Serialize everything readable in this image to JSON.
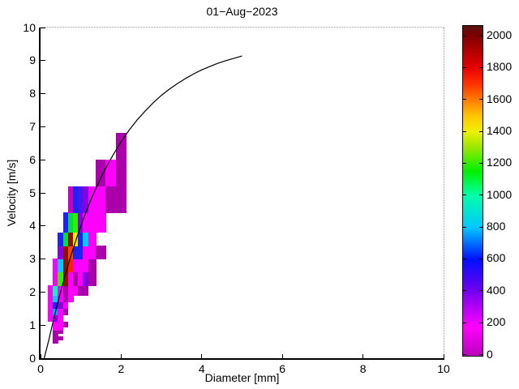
{
  "figure": {
    "title": "01−Aug−2023",
    "xlabel": "Diameter [mm]",
    "ylabel": "Velocity [m/s]"
  },
  "axes": {
    "xlim": [
      0,
      10
    ],
    "ylim": [
      0,
      10
    ],
    "x_tick_values": [
      0,
      2,
      4,
      6,
      8,
      10
    ],
    "x_tick_labels": [
      "0",
      "2",
      "4",
      "6",
      "8",
      "10"
    ],
    "y_tick_values": [
      0,
      1,
      2,
      3,
      4,
      5,
      6,
      7,
      8,
      9,
      10
    ],
    "y_tick_labels": [
      "0",
      "1",
      "2",
      "3",
      "4",
      "5",
      "6",
      "7",
      "8",
      "9",
      "10"
    ],
    "box_top_right_style": "dotted-gray",
    "grid": false
  },
  "colorbar": {
    "orientation": "vertical",
    "position": "right",
    "vmin": 0,
    "vmax": 2059,
    "tick_values": [
      0,
      200,
      400,
      600,
      800,
      1000,
      1200,
      1400,
      1600,
      1800,
      2000
    ],
    "tick_labels": [
      "0",
      "200",
      "400",
      "600",
      "800",
      "1000",
      "1200",
      "1400",
      "1600",
      "1800",
      "2000"
    ],
    "gradient_stops": [
      [
        0,
        "#BB00BB"
      ],
      [
        180,
        "#FF00FF"
      ],
      [
        420,
        "#6A00F0"
      ],
      [
        600,
        "#0010FF"
      ],
      [
        800,
        "#00C8FF"
      ],
      [
        1000,
        "#00FFAA"
      ],
      [
        1150,
        "#00F000"
      ],
      [
        1300,
        "#9AE800"
      ],
      [
        1400,
        "#F0F000"
      ],
      [
        1500,
        "#FFC400"
      ],
      [
        1600,
        "#FF7A00"
      ],
      [
        1700,
        "#FF3000"
      ],
      [
        1800,
        "#E60000"
      ],
      [
        1900,
        "#B20000"
      ],
      [
        2000,
        "#7E0000"
      ],
      [
        2059,
        "#581410"
      ]
    ]
  },
  "chart_data": {
    "type": "heatmap",
    "title": "01−Aug−2023",
    "xlabel": "Diameter [mm]",
    "ylabel": "Velocity [m/s]",
    "xlim": [
      0,
      10
    ],
    "ylim": [
      0,
      10
    ],
    "colorbar_range": [
      0,
      2059
    ],
    "legend_position": "right-colorbar",
    "description": "Disdrometer drop size vs fall velocity spectrum with drop-count colored bins and empirical terminal-velocity curve",
    "cells": [
      {
        "d": [
          0.312,
          0.437
        ],
        "v": [
          0.45,
          0.55
        ],
        "n": 25,
        "c": "#AA00AA"
      },
      {
        "d": [
          0.312,
          0.437
        ],
        "v": [
          0.55,
          0.65
        ],
        "n": 25,
        "c": "#AA00AA"
      },
      {
        "d": [
          0.437,
          0.562
        ],
        "v": [
          0.55,
          0.65
        ],
        "n": 25,
        "c": "#AA00AA"
      },
      {
        "d": [
          0.312,
          0.437
        ],
        "v": [
          0.65,
          0.75
        ],
        "n": 25,
        "c": "#AA00AA"
      },
      {
        "d": [
          0.312,
          0.437
        ],
        "v": [
          0.75,
          0.85
        ],
        "n": 25,
        "c": "#AA00AA"
      },
      {
        "d": [
          0.437,
          0.562
        ],
        "v": [
          0.75,
          0.85
        ],
        "n": 25,
        "c": "#AA00AA"
      },
      {
        "d": [
          0.312,
          0.437
        ],
        "v": [
          0.85,
          0.95
        ],
        "n": 150,
        "c": "#FF00FF"
      },
      {
        "d": [
          0.437,
          0.562
        ],
        "v": [
          0.85,
          0.95
        ],
        "n": 150,
        "c": "#FF00FF"
      },
      {
        "d": [
          0.312,
          0.437
        ],
        "v": [
          0.95,
          1.1
        ],
        "n": 150,
        "c": "#FF00FF"
      },
      {
        "d": [
          0.437,
          0.562
        ],
        "v": [
          0.95,
          1.1
        ],
        "n": 150,
        "c": "#FF00FF"
      },
      {
        "d": [
          0.562,
          0.687
        ],
        "v": [
          0.95,
          1.1
        ],
        "n": 25,
        "c": "#AA00AA"
      },
      {
        "d": [
          0.187,
          0.312
        ],
        "v": [
          1.1,
          1.3
        ],
        "n": 150,
        "c": "#FF00FF"
      },
      {
        "d": [
          0.312,
          0.437
        ],
        "v": [
          1.1,
          1.3
        ],
        "n": 330,
        "c": "#8800DD"
      },
      {
        "d": [
          0.437,
          0.562
        ],
        "v": [
          1.1,
          1.3
        ],
        "n": 150,
        "c": "#FF00FF"
      },
      {
        "d": [
          0.187,
          0.312
        ],
        "v": [
          1.3,
          1.5
        ],
        "n": 150,
        "c": "#FF00FF"
      },
      {
        "d": [
          0.312,
          0.437
        ],
        "v": [
          1.3,
          1.5
        ],
        "n": 740,
        "c": "#00AAFF"
      },
      {
        "d": [
          0.437,
          0.562
        ],
        "v": [
          1.3,
          1.5
        ],
        "n": 150,
        "c": "#FF00FF"
      },
      {
        "d": [
          0.562,
          0.687
        ],
        "v": [
          1.3,
          1.5
        ],
        "n": 25,
        "c": "#AA00AA"
      },
      {
        "d": [
          0.187,
          0.312
        ],
        "v": [
          1.5,
          1.7
        ],
        "n": 150,
        "c": "#FF00FF"
      },
      {
        "d": [
          0.312,
          0.437
        ],
        "v": [
          1.5,
          1.7
        ],
        "n": 560,
        "c": "#2222F0"
      },
      {
        "d": [
          0.437,
          0.562
        ],
        "v": [
          1.5,
          1.7
        ],
        "n": 330,
        "c": "#8800DD"
      },
      {
        "d": [
          0.562,
          0.687
        ],
        "v": [
          1.5,
          1.7
        ],
        "n": 150,
        "c": "#FF00FF"
      },
      {
        "d": [
          0.187,
          0.312
        ],
        "v": [
          1.7,
          1.9
        ],
        "n": 150,
        "c": "#FF00FF"
      },
      {
        "d": [
          0.312,
          0.437
        ],
        "v": [
          1.7,
          1.9
        ],
        "n": 800,
        "c": "#00CCFF"
      },
      {
        "d": [
          0.437,
          0.562
        ],
        "v": [
          1.7,
          1.9
        ],
        "n": 150,
        "c": "#FF00FF"
      },
      {
        "d": [
          0.562,
          0.687
        ],
        "v": [
          1.7,
          1.9
        ],
        "n": 25,
        "c": "#AA00AA"
      },
      {
        "d": [
          0.687,
          0.812
        ],
        "v": [
          1.7,
          1.9
        ],
        "n": 150,
        "c": "#FF00FF"
      },
      {
        "d": [
          0.187,
          0.312
        ],
        "v": [
          1.9,
          2.2
        ],
        "n": 150,
        "c": "#FF00FF"
      },
      {
        "d": [
          0.312,
          0.437
        ],
        "v": [
          1.9,
          2.2
        ],
        "n": 950,
        "c": "#00FFBB"
      },
      {
        "d": [
          0.437,
          0.562
        ],
        "v": [
          1.9,
          2.2
        ],
        "n": 150,
        "c": "#FF00FF"
      },
      {
        "d": [
          0.562,
          0.687
        ],
        "v": [
          1.9,
          2.2
        ],
        "n": 25,
        "c": "#AA00AA"
      },
      {
        "d": [
          0.687,
          0.812
        ],
        "v": [
          1.9,
          2.2
        ],
        "n": 150,
        "c": "#FF00FF"
      },
      {
        "d": [
          0.812,
          0.937
        ],
        "v": [
          1.9,
          2.2
        ],
        "n": 150,
        "c": "#FF00FF"
      },
      {
        "d": [
          0.937,
          1.062
        ],
        "v": [
          1.9,
          2.2
        ],
        "n": 25,
        "c": "#AA00AA"
      },
      {
        "d": [
          1.062,
          1.187
        ],
        "v": [
          1.9,
          2.2
        ],
        "n": 25,
        "c": "#AA00AA"
      },
      {
        "d": [
          0.312,
          0.437
        ],
        "v": [
          2.2,
          2.6
        ],
        "n": 150,
        "c": "#FF00FF"
      },
      {
        "d": [
          0.437,
          0.562
        ],
        "v": [
          2.2,
          2.6
        ],
        "n": 1220,
        "c": "#33EE00"
      },
      {
        "d": [
          0.562,
          0.687
        ],
        "v": [
          2.2,
          2.6
        ],
        "n": 1980,
        "c": "#8E1200"
      },
      {
        "d": [
          0.687,
          0.812
        ],
        "v": [
          2.2,
          2.6
        ],
        "n": 150,
        "c": "#FF00FF"
      },
      {
        "d": [
          0.812,
          0.937
        ],
        "v": [
          2.2,
          2.6
        ],
        "n": 25,
        "c": "#AA00AA"
      },
      {
        "d": [
          0.937,
          1.062
        ],
        "v": [
          2.2,
          2.6
        ],
        "n": 150,
        "c": "#FF00FF"
      },
      {
        "d": [
          1.062,
          1.187
        ],
        "v": [
          2.2,
          2.6
        ],
        "n": 330,
        "c": "#8800DD"
      },
      {
        "d": [
          1.187,
          1.375
        ],
        "v": [
          2.2,
          2.6
        ],
        "n": 25,
        "c": "#AA00AA"
      },
      {
        "d": [
          0.312,
          0.437
        ],
        "v": [
          2.6,
          3.0
        ],
        "n": 150,
        "c": "#FF00FF"
      },
      {
        "d": [
          0.437,
          0.562
        ],
        "v": [
          2.6,
          3.0
        ],
        "n": 800,
        "c": "#00CCFF"
      },
      {
        "d": [
          0.562,
          0.687
        ],
        "v": [
          2.6,
          3.0
        ],
        "n": 1980,
        "c": "#8E1200"
      },
      {
        "d": [
          0.687,
          0.812
        ],
        "v": [
          2.6,
          3.0
        ],
        "n": 1750,
        "c": "#FF2200"
      },
      {
        "d": [
          0.812,
          0.937
        ],
        "v": [
          2.6,
          3.0
        ],
        "n": 150,
        "c": "#FF00FF"
      },
      {
        "d": [
          0.937,
          1.062
        ],
        "v": [
          2.6,
          3.0
        ],
        "n": 150,
        "c": "#FF00FF"
      },
      {
        "d": [
          1.062,
          1.187
        ],
        "v": [
          2.6,
          3.0
        ],
        "n": 150,
        "c": "#FF00FF"
      },
      {
        "d": [
          1.187,
          1.375
        ],
        "v": [
          2.6,
          3.0
        ],
        "n": 25,
        "c": "#AA00AA"
      },
      {
        "d": [
          0.437,
          0.562
        ],
        "v": [
          3.0,
          3.4
        ],
        "n": 330,
        "c": "#8800DD"
      },
      {
        "d": [
          0.562,
          0.687
        ],
        "v": [
          3.0,
          3.4
        ],
        "n": 1980,
        "c": "#8E1200"
      },
      {
        "d": [
          0.687,
          0.812
        ],
        "v": [
          3.0,
          3.4
        ],
        "n": 1670,
        "c": "#FF4400"
      },
      {
        "d": [
          0.812,
          0.937
        ],
        "v": [
          3.0,
          3.4
        ],
        "n": 560,
        "c": "#2222F0"
      },
      {
        "d": [
          0.937,
          1.062
        ],
        "v": [
          3.0,
          3.4
        ],
        "n": 560,
        "c": "#2222F0"
      },
      {
        "d": [
          1.062,
          1.187
        ],
        "v": [
          3.0,
          3.4
        ],
        "n": 150,
        "c": "#FF00FF"
      },
      {
        "d": [
          1.187,
          1.375
        ],
        "v": [
          3.0,
          3.4
        ],
        "n": 150,
        "c": "#FF00FF"
      },
      {
        "d": [
          1.375,
          1.625
        ],
        "v": [
          3.0,
          3.4
        ],
        "n": 25,
        "c": "#AA00AA"
      },
      {
        "d": [
          0.437,
          0.562
        ],
        "v": [
          3.4,
          3.8
        ],
        "n": 560,
        "c": "#2222F0"
      },
      {
        "d": [
          0.562,
          0.687
        ],
        "v": [
          3.4,
          3.8
        ],
        "n": 1100,
        "c": "#00DD44"
      },
      {
        "d": [
          0.687,
          0.812
        ],
        "v": [
          3.4,
          3.8
        ],
        "n": 1980,
        "c": "#8E1200"
      },
      {
        "d": [
          0.812,
          0.937
        ],
        "v": [
          3.4,
          3.8
        ],
        "n": 1400,
        "c": "#EEEE00"
      },
      {
        "d": [
          0.937,
          1.062
        ],
        "v": [
          3.4,
          3.8
        ],
        "n": 560,
        "c": "#2222F0"
      },
      {
        "d": [
          1.062,
          1.187
        ],
        "v": [
          3.4,
          3.8
        ],
        "n": 800,
        "c": "#00CCFF"
      },
      {
        "d": [
          1.187,
          1.375
        ],
        "v": [
          3.4,
          3.8
        ],
        "n": 150,
        "c": "#FF00FF"
      },
      {
        "d": [
          0.562,
          0.687
        ],
        "v": [
          3.8,
          4.4
        ],
        "n": 560,
        "c": "#2222F0"
      },
      {
        "d": [
          0.687,
          0.812
        ],
        "v": [
          3.8,
          4.4
        ],
        "n": 1100,
        "c": "#00DD44"
      },
      {
        "d": [
          0.812,
          0.937
        ],
        "v": [
          3.8,
          4.4
        ],
        "n": 1220,
        "c": "#33EE00"
      },
      {
        "d": [
          0.937,
          1.062
        ],
        "v": [
          3.8,
          4.4
        ],
        "n": 330,
        "c": "#8800DD"
      },
      {
        "d": [
          1.062,
          1.187
        ],
        "v": [
          3.8,
          4.4
        ],
        "n": 150,
        "c": "#FF00FF"
      },
      {
        "d": [
          1.187,
          1.375
        ],
        "v": [
          3.8,
          4.4
        ],
        "n": 150,
        "c": "#FF00FF"
      },
      {
        "d": [
          1.375,
          1.625
        ],
        "v": [
          3.8,
          4.4
        ],
        "n": 150,
        "c": "#FF00FF"
      },
      {
        "d": [
          0.687,
          0.812
        ],
        "v": [
          4.4,
          5.2
        ],
        "n": 60,
        "c": "#C400C4"
      },
      {
        "d": [
          0.812,
          0.937
        ],
        "v": [
          4.4,
          5.2
        ],
        "n": 560,
        "c": "#2222F0"
      },
      {
        "d": [
          0.937,
          1.062
        ],
        "v": [
          4.4,
          5.2
        ],
        "n": 480,
        "c": "#4418F5"
      },
      {
        "d": [
          1.062,
          1.187
        ],
        "v": [
          4.4,
          5.2
        ],
        "n": 330,
        "c": "#8800DD"
      },
      {
        "d": [
          1.187,
          1.375
        ],
        "v": [
          4.4,
          5.2
        ],
        "n": 160,
        "c": "#FA00FA"
      },
      {
        "d": [
          1.375,
          1.625
        ],
        "v": [
          4.4,
          5.2
        ],
        "n": 150,
        "c": "#FF00FF"
      },
      {
        "d": [
          1.625,
          1.875
        ],
        "v": [
          4.4,
          5.2
        ],
        "n": 25,
        "c": "#AA00AA"
      },
      {
        "d": [
          1.875,
          2.125
        ],
        "v": [
          4.4,
          5.2
        ],
        "n": 25,
        "c": "#AA00AA"
      },
      {
        "d": [
          1.375,
          1.625
        ],
        "v": [
          5.2,
          6.0
        ],
        "n": 25,
        "c": "#AA00AA"
      },
      {
        "d": [
          1.625,
          1.875
        ],
        "v": [
          5.2,
          6.0
        ],
        "n": 150,
        "c": "#FF00FF"
      },
      {
        "d": [
          1.875,
          2.125
        ],
        "v": [
          5.2,
          6.0
        ],
        "n": 25,
        "c": "#AA00AA"
      },
      {
        "d": [
          1.875,
          2.125
        ],
        "v": [
          6.0,
          6.8
        ],
        "n": 25,
        "c": "#AA00AA"
      }
    ],
    "curve": {
      "name": "terminal-velocity-curve",
      "formula": "v = 9.65 - 10.3*exp(-0.6*D)",
      "points": [
        [
          0.09,
          0.0
        ],
        [
          0.2,
          0.52
        ],
        [
          0.3,
          1.05
        ],
        [
          0.4,
          1.55
        ],
        [
          0.5,
          2.02
        ],
        [
          0.6,
          2.46
        ],
        [
          0.7,
          2.88
        ],
        [
          0.8,
          3.28
        ],
        [
          0.9,
          3.65
        ],
        [
          1.0,
          4.0
        ],
        [
          1.1,
          4.33
        ],
        [
          1.2,
          4.64
        ],
        [
          1.3,
          4.93
        ],
        [
          1.4,
          5.2
        ],
        [
          1.5,
          5.46
        ],
        [
          1.6,
          5.71
        ],
        [
          1.8,
          6.15
        ],
        [
          2.0,
          6.55
        ],
        [
          2.2,
          6.9
        ],
        [
          2.4,
          7.21
        ],
        [
          2.6,
          7.48
        ],
        [
          2.8,
          7.73
        ],
        [
          3.0,
          7.95
        ],
        [
          3.2,
          8.14
        ],
        [
          3.4,
          8.31
        ],
        [
          3.6,
          8.46
        ],
        [
          3.8,
          8.6
        ],
        [
          4.0,
          8.72
        ],
        [
          4.2,
          8.82
        ],
        [
          4.4,
          8.92
        ],
        [
          4.6,
          9.0
        ],
        [
          4.8,
          9.07
        ],
        [
          5.0,
          9.14
        ]
      ]
    }
  }
}
